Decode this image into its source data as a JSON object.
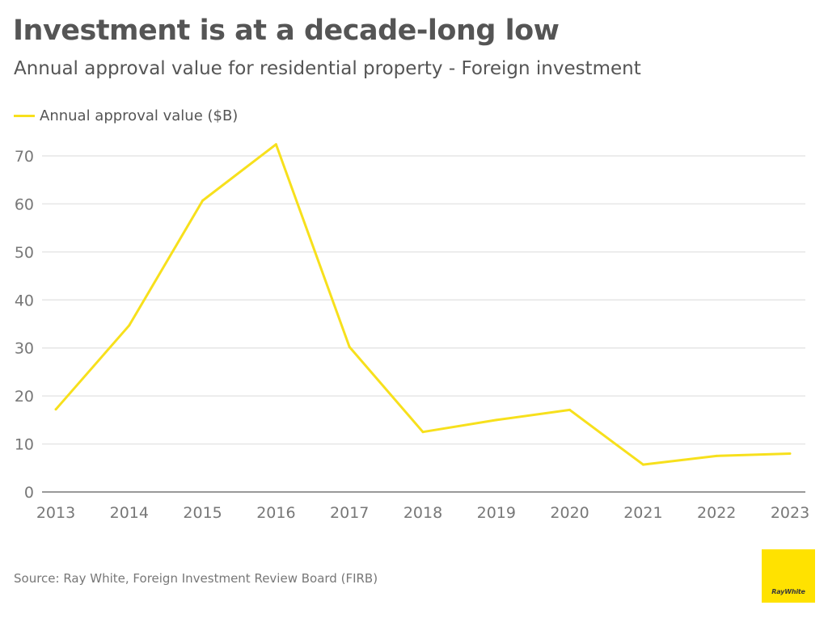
{
  "header": {
    "title": "Investment is at a decade-long low",
    "subtitle": "Annual approval value for residential property - Foreign investment"
  },
  "footer": {
    "source": "Source: Ray White, Foreign Investment Review Board (FIRB)",
    "logo_text": "RayWhite"
  },
  "colors": {
    "series": "#f7e01c",
    "logo_bg": "#ffe200",
    "grid": "#e6e6e6",
    "axis": "#999999"
  },
  "chart_data": {
    "type": "line",
    "title": "Investment is at a decade-long low",
    "subtitle": "Annual approval value for residential property - Foreign investment",
    "xlabel": "",
    "ylabel": "",
    "categories": [
      "2013",
      "2014",
      "2015",
      "2016",
      "2017",
      "2018",
      "2019",
      "2020",
      "2021",
      "2022",
      "2023"
    ],
    "series": [
      {
        "name": "Annual approval value ($B)",
        "values": [
          17.2,
          34.7,
          60.7,
          72.4,
          30.2,
          12.5,
          15.0,
          17.1,
          5.7,
          7.5,
          8.0
        ]
      }
    ],
    "ylim": [
      0,
      70
    ],
    "yticks": [
      "0",
      "10",
      "20",
      "30",
      "40",
      "50",
      "60",
      "70"
    ],
    "grid": true,
    "legend_position": "top-left"
  }
}
